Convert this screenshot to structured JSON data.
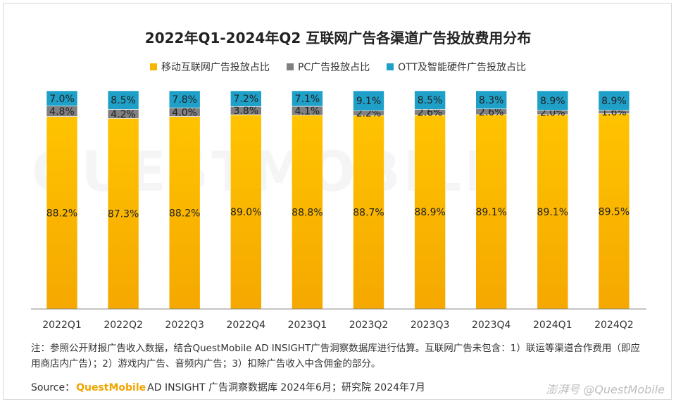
{
  "title": "2022年Q1-2024年Q2 互联网广告各渠道广告投放费用分布",
  "legend": [
    {
      "label": "移动互联网广告投放占比",
      "color": "#f5b800"
    },
    {
      "label": "PC广告投放占比",
      "color": "#808080"
    },
    {
      "label": "OTT及智能硬件广告投放占比",
      "color": "#1fa0c8"
    }
  ],
  "chart_data": {
    "type": "bar",
    "stacked": true,
    "percent_stacked": true,
    "categories": [
      "2022Q1",
      "2022Q2",
      "2022Q3",
      "2022Q4",
      "2023Q1",
      "2023Q2",
      "2023Q3",
      "2023Q4",
      "2024Q1",
      "2024Q2"
    ],
    "series": [
      {
        "name": "移动互联网广告投放占比",
        "values": [
          88.2,
          87.3,
          88.2,
          89.0,
          88.8,
          88.7,
          88.9,
          89.1,
          89.1,
          89.5
        ],
        "labels": [
          "88.2%",
          "87.3%",
          "88.2%",
          "89.0%",
          "88.8%",
          "88.7%",
          "88.9%",
          "89.1%",
          "89.1%",
          "89.5%"
        ],
        "color": "#f5b800"
      },
      {
        "name": "PC广告投放占比",
        "values": [
          4.8,
          4.2,
          4.0,
          3.8,
          4.1,
          2.2,
          2.6,
          2.6,
          2.0,
          1.6
        ],
        "labels": [
          "4.8%",
          "4.2%",
          "4.0%",
          "3.8%",
          "4.1%",
          "2.2%",
          "2.6%",
          "2.6%",
          "2.0%",
          "1.6%"
        ],
        "color": "#808080"
      },
      {
        "name": "OTT及智能硬件广告投放占比",
        "values": [
          7.0,
          8.5,
          7.8,
          7.2,
          7.1,
          9.1,
          8.5,
          8.3,
          8.9,
          8.9
        ],
        "labels": [
          "7.0%",
          "8.5%",
          "7.8%",
          "7.2%",
          "7.1%",
          "9.1%",
          "8.5%",
          "8.3%",
          "8.9%",
          "8.9%"
        ],
        "color": "#1fa0c8"
      }
    ],
    "ylim": [
      0,
      100
    ],
    "legend_position": "top"
  },
  "note": "注：参照公开财报广告收入数据，结合QuestMobile AD INSIGHT广告洞察数据库进行估算。互联网广告未包含：1）联运等渠道合作费用（即应用商店内广告）；2）游戏内广告、音频内广告；3）扣除广告收入中含佣金的部分。",
  "source": {
    "prefix": "Source：",
    "brand": "QuestMobile",
    "rest": "AD INSIGHT 广告洞察数据库 2024年6月；研究院 2024年7月"
  },
  "watermark": "QUESTMOBILE",
  "corner_watermark": "澎湃号 @QuestMobile"
}
